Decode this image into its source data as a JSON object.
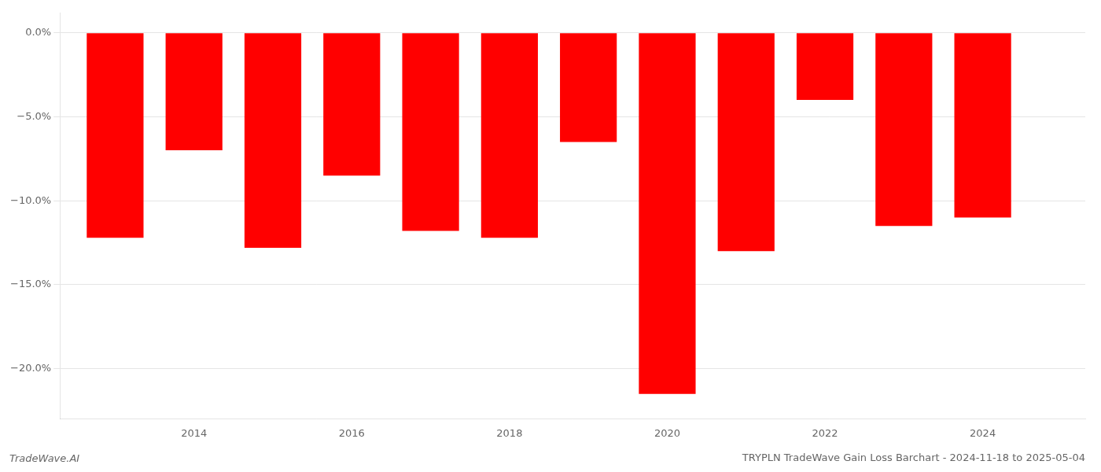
{
  "chart_data": {
    "type": "bar",
    "title": "TRYPLN TradeWave Gain Loss Barchart - 2024-11-18 to 2025-05-04",
    "annotations": [
      "TradeWave.AI"
    ],
    "x": [
      2013,
      2014,
      2015,
      2016,
      2017,
      2018,
      2019,
      2020,
      2021,
      2022,
      2023,
      2024
    ],
    "values": [
      -12.2,
      -7.0,
      -12.8,
      -8.5,
      -11.8,
      -12.2,
      -6.5,
      -21.5,
      -13.0,
      -4.0,
      -11.5,
      -11.0
    ],
    "color": "#ff0000",
    "xlim": [
      2012.3,
      2025.3
    ],
    "xticks": [
      2014,
      2016,
      2018,
      2020,
      2022,
      2024
    ],
    "ylim": [
      -23,
      1.2
    ],
    "yticks": [
      {
        "value": 0.0,
        "label": "0.0%"
      },
      {
        "value": -5.0,
        "label": "−5.0%"
      },
      {
        "value": -10.0,
        "label": "−10.0%"
      },
      {
        "value": -15.0,
        "label": "−15.0%"
      },
      {
        "value": -20.0,
        "label": "−20.0%"
      }
    ],
    "grid": true
  }
}
